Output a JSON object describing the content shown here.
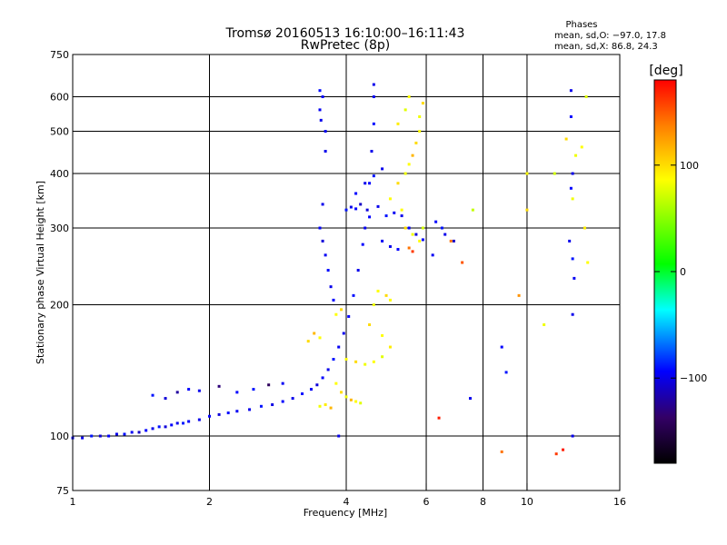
{
  "chart_data": {
    "type": "scatter",
    "title": "Tromsø 20160513 16:10:00–16:11:43",
    "subtitle": "RwPretec (8p)",
    "stats": {
      "heading": "Phases",
      "line1": "mean, sd,O:  −97.0, 17.8",
      "line2": "mean, sd,X:  86.8, 24.3"
    },
    "xlabel": "Frequency [MHz]",
    "ylabel": "Stationary phase Virtual Height [km]",
    "xscale": "log",
    "yscale": "log",
    "xlim": [
      1,
      16
    ],
    "ylim": [
      75,
      750
    ],
    "x_ticks": [
      1,
      2,
      4,
      6,
      8,
      10,
      16
    ],
    "x_tick_labels": [
      "1",
      "2",
      "4",
      "6",
      "8",
      "10",
      "16"
    ],
    "x_gridlines": [
      2,
      4,
      6,
      8,
      10
    ],
    "y_ticks": [
      75,
      100,
      200,
      300,
      400,
      500,
      600,
      750
    ],
    "y_tick_labels": [
      "75",
      "100",
      "200",
      "300",
      "400",
      "500",
      "600",
      "750"
    ],
    "y_gridlines": [
      100,
      200,
      300,
      400,
      500,
      600
    ],
    "grid": true,
    "colorbar": {
      "label": "[deg]",
      "range": [
        -180,
        180
      ],
      "ticks": [
        100,
        0,
        -100
      ],
      "tick_labels": [
        "100",
        "0",
        "−100"
      ],
      "colors": [
        "#ff0000",
        "#ff8000",
        "#ffff00",
        "#00ff00",
        "#00ffff",
        "#0000ff",
        "#330066",
        "#000000"
      ]
    },
    "series": [
      {
        "points": [
          [
            1.0,
            99,
            -95
          ],
          [
            1.05,
            99,
            -100
          ],
          [
            1.1,
            100,
            -90
          ],
          [
            1.15,
            100,
            -105
          ],
          [
            1.2,
            100,
            -95
          ],
          [
            1.25,
            101,
            -100
          ],
          [
            1.3,
            101,
            -92
          ],
          [
            1.35,
            102,
            -98
          ],
          [
            1.4,
            102,
            -110
          ],
          [
            1.45,
            103,
            -95
          ],
          [
            1.5,
            104,
            -100
          ],
          [
            1.55,
            105,
            -90
          ],
          [
            1.6,
            105,
            -105
          ],
          [
            1.65,
            106,
            -95
          ],
          [
            1.7,
            107,
            -100
          ],
          [
            1.75,
            107,
            -88
          ],
          [
            1.8,
            108,
            -96
          ],
          [
            1.9,
            109,
            -100
          ],
          [
            2.0,
            111,
            -95
          ],
          [
            2.1,
            112,
            -105
          ],
          [
            2.2,
            113,
            -92
          ],
          [
            2.3,
            114,
            -98
          ],
          [
            2.45,
            115,
            -100
          ],
          [
            2.6,
            117,
            -90
          ],
          [
            2.75,
            118,
            -102
          ],
          [
            2.9,
            120,
            -95
          ],
          [
            3.05,
            122,
            -100
          ],
          [
            3.2,
            125,
            -92
          ],
          [
            3.35,
            128,
            -98
          ],
          [
            3.45,
            131,
            -105
          ],
          [
            3.55,
            136,
            -95
          ],
          [
            3.65,
            142,
            -100
          ],
          [
            3.75,
            150,
            -90
          ],
          [
            3.85,
            160,
            -98
          ],
          [
            3.95,
            172,
            -100
          ],
          [
            4.05,
            188,
            -95
          ],
          [
            4.15,
            210,
            -92
          ],
          [
            4.25,
            240,
            -100
          ],
          [
            4.35,
            275,
            -95
          ],
          [
            4.4,
            300,
            -98
          ],
          [
            4.45,
            330,
            -105
          ],
          [
            4.5,
            380,
            -95
          ],
          [
            4.55,
            450,
            -100
          ],
          [
            4.6,
            520,
            -92
          ],
          [
            4.6,
            600,
            -98
          ],
          [
            4.6,
            640,
            -100
          ],
          [
            1.5,
            124,
            -90
          ],
          [
            1.6,
            122,
            -105
          ],
          [
            1.7,
            126,
            -120
          ],
          [
            1.8,
            128,
            -95
          ],
          [
            1.9,
            127,
            -100
          ],
          [
            2.1,
            130,
            -130
          ],
          [
            2.3,
            126,
            -95
          ],
          [
            2.5,
            128,
            -90
          ],
          [
            2.7,
            131,
            -140
          ],
          [
            2.9,
            132,
            -98
          ],
          [
            3.5,
            300,
            -95
          ],
          [
            3.55,
            340,
            -100
          ],
          [
            3.55,
            280,
            -105
          ],
          [
            3.6,
            260,
            -98
          ],
          [
            3.65,
            240,
            -92
          ],
          [
            3.7,
            220,
            -100
          ],
          [
            3.75,
            205,
            -95
          ],
          [
            3.6,
            450,
            -100
          ],
          [
            3.6,
            500,
            -98
          ],
          [
            4.0,
            330,
            -90
          ],
          [
            4.1,
            335,
            -100
          ],
          [
            4.2,
            332,
            -95
          ],
          [
            4.3,
            340,
            -110
          ],
          [
            4.5,
            318,
            -95
          ],
          [
            4.7,
            336,
            -100
          ],
          [
            4.9,
            320,
            -90
          ],
          [
            5.1,
            325,
            -98
          ],
          [
            5.3,
            320,
            -100
          ],
          [
            5.5,
            300,
            -95
          ],
          [
            5.7,
            290,
            -105
          ],
          [
            5.9,
            282,
            -95
          ],
          [
            4.8,
            280,
            -98
          ],
          [
            5.0,
            272,
            -100
          ],
          [
            5.2,
            268,
            -95
          ],
          [
            4.2,
            360,
            -95
          ],
          [
            4.4,
            380,
            -100
          ],
          [
            4.6,
            395,
            -90
          ],
          [
            4.8,
            410,
            -100
          ],
          [
            3.5,
            620,
            -92
          ],
          [
            3.55,
            600,
            -95
          ],
          [
            3.5,
            560,
            -98
          ],
          [
            3.52,
            530,
            -100
          ],
          [
            6.3,
            310,
            -95
          ],
          [
            6.6,
            290,
            -100
          ],
          [
            6.9,
            280,
            -110
          ],
          [
            6.2,
            260,
            -98
          ],
          [
            6.5,
            300,
            -90
          ],
          [
            12.5,
            620,
            -100
          ],
          [
            12.5,
            540,
            -95
          ],
          [
            12.6,
            400,
            -100
          ],
          [
            12.5,
            370,
            -95
          ],
          [
            12.4,
            280,
            -100
          ],
          [
            12.6,
            255,
            -90
          ],
          [
            12.7,
            230,
            -98
          ],
          [
            12.6,
            190,
            -100
          ],
          [
            12.6,
            100,
            -100
          ],
          [
            9.0,
            140,
            -90
          ],
          [
            8.8,
            160,
            -95
          ],
          [
            7.5,
            122,
            -100
          ],
          [
            3.85,
            100,
            -100
          ]
        ]
      },
      {
        "points": [
          [
            3.8,
            132,
            100
          ],
          [
            3.9,
            126,
            110
          ],
          [
            4.0,
            123,
            95
          ],
          [
            4.1,
            121,
            120
          ],
          [
            4.2,
            120,
            100
          ],
          [
            4.3,
            119,
            90
          ],
          [
            3.6,
            118,
            105
          ],
          [
            3.7,
            116,
            120
          ],
          [
            3.5,
            117,
            95
          ],
          [
            4.0,
            150,
            100
          ],
          [
            4.2,
            148,
            110
          ],
          [
            4.4,
            146,
            95
          ],
          [
            4.6,
            148,
            100
          ],
          [
            4.8,
            152,
            90
          ],
          [
            5.0,
            160,
            105
          ],
          [
            4.8,
            170,
            100
          ],
          [
            4.5,
            180,
            110
          ],
          [
            4.6,
            200,
            95
          ],
          [
            4.7,
            215,
            100
          ],
          [
            4.9,
            210,
            110
          ],
          [
            5.0,
            205,
            100
          ],
          [
            5.0,
            350,
            100
          ],
          [
            5.2,
            380,
            110
          ],
          [
            5.4,
            400,
            95
          ],
          [
            5.5,
            420,
            100
          ],
          [
            5.6,
            440,
            120
          ],
          [
            5.7,
            470,
            110
          ],
          [
            5.8,
            500,
            100
          ],
          [
            5.8,
            540,
            95
          ],
          [
            5.9,
            580,
            110
          ],
          [
            5.5,
            600,
            100
          ],
          [
            5.4,
            560,
            90
          ],
          [
            5.2,
            520,
            105
          ],
          [
            5.3,
            330,
            100
          ],
          [
            5.4,
            300,
            110
          ],
          [
            5.6,
            290,
            95
          ],
          [
            5.8,
            280,
            100
          ],
          [
            5.5,
            270,
            140
          ],
          [
            5.6,
            265,
            160
          ],
          [
            5.9,
            300,
            85
          ],
          [
            3.3,
            165,
            110
          ],
          [
            3.5,
            168,
            100
          ],
          [
            3.4,
            172,
            120
          ],
          [
            3.8,
            190,
            100
          ],
          [
            3.9,
            195,
            110
          ],
          [
            13.5,
            600,
            90
          ],
          [
            13.2,
            460,
            100
          ],
          [
            12.2,
            480,
            110
          ],
          [
            11.5,
            400,
            85
          ],
          [
            10.0,
            400,
            100
          ],
          [
            10.0,
            330,
            110
          ],
          [
            9.6,
            210,
            130
          ],
          [
            8.8,
            92,
            140
          ],
          [
            10.9,
            180,
            95
          ],
          [
            12.8,
            440,
            95
          ],
          [
            13.4,
            300,
            105
          ],
          [
            13.6,
            250,
            100
          ],
          [
            12.6,
            350,
            95
          ],
          [
            6.4,
            110,
            170
          ],
          [
            6.8,
            280,
            140
          ],
          [
            7.2,
            250,
            150
          ],
          [
            7.6,
            330,
            80
          ],
          [
            11.6,
            91,
            160
          ],
          [
            12.0,
            93,
            170
          ]
        ]
      }
    ]
  }
}
